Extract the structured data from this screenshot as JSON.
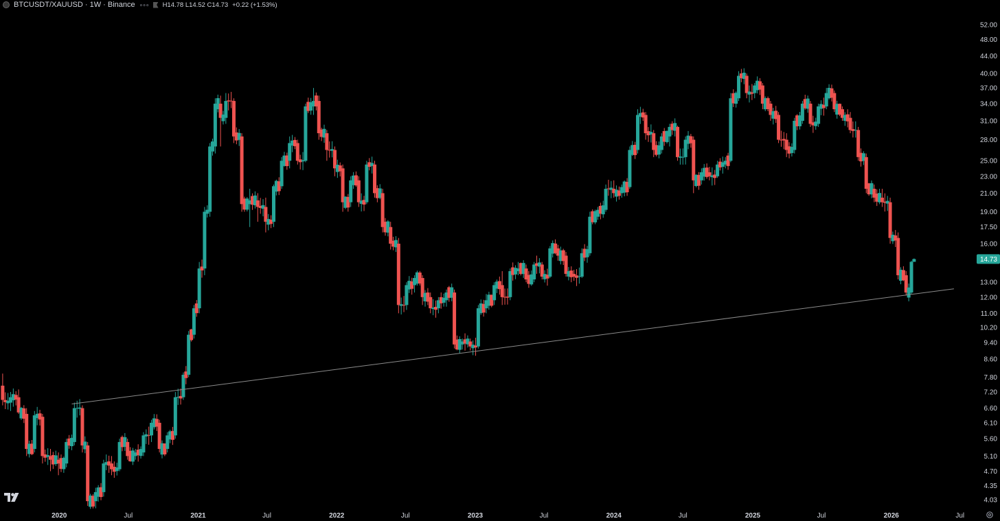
{
  "header": {
    "symbol": "BTCUSDT/XAUUSD · 1W · Binance",
    "ohlc": "H14.78  L14.52  C14.73",
    "change": "+0.22 (+1.53%)"
  },
  "colors": {
    "background": "#000000",
    "up": "#26a69a",
    "down": "#ef5350",
    "trendline": "#8c8c8c",
    "price_badge": "#26a69a"
  },
  "icons": {
    "logo": "tradingview-logo-icon",
    "settings": "gear-icon",
    "symbol": "symbol-dot-icon"
  },
  "chart_data": {
    "type": "candlestick",
    "scale": "log",
    "interval": "1W",
    "y_ticks": [
      52.0,
      48.0,
      44.0,
      40.0,
      37.0,
      34.0,
      31.0,
      28.0,
      25.0,
      23.0,
      21.0,
      19.0,
      17.5,
      16.0,
      13.0,
      12.0,
      11.0,
      10.2,
      9.4,
      8.6,
      7.8,
      7.2,
      6.6,
      6.1,
      5.6,
      5.1,
      4.7,
      4.35,
      4.03
    ],
    "y_tick_labels": [
      "52.00",
      "48.00",
      "44.00",
      "40.00",
      "37.00",
      "34.00",
      "31.00",
      "28.00",
      "25.00",
      "23.00",
      "21.00",
      "19.00",
      "17.50",
      "16.00",
      "13.00",
      "12.00",
      "11.00",
      "10.20",
      "9.40",
      "8.60",
      "7.80",
      "7.20",
      "6.60",
      "6.10",
      "5.60",
      "5.10",
      "4.70",
      "4.35",
      "4.03"
    ],
    "x_ticks": [
      {
        "label": "2020",
        "date": "2020-01-01",
        "bold": true
      },
      {
        "label": "Jul",
        "date": "2020-07-01",
        "bold": false
      },
      {
        "label": "2021",
        "date": "2021-01-01",
        "bold": true
      },
      {
        "label": "Jul",
        "date": "2021-07-01",
        "bold": false
      },
      {
        "label": "2022",
        "date": "2022-01-01",
        "bold": true
      },
      {
        "label": "Jul",
        "date": "2022-07-01",
        "bold": false
      },
      {
        "label": "2023",
        "date": "2023-01-01",
        "bold": true
      },
      {
        "label": "Jul",
        "date": "2023-07-01",
        "bold": false
      },
      {
        "label": "2024",
        "date": "2024-01-01",
        "bold": true
      },
      {
        "label": "Jul",
        "date": "2024-07-01",
        "bold": false
      },
      {
        "label": "2025",
        "date": "2025-01-01",
        "bold": true
      },
      {
        "label": "Jul",
        "date": "2025-07-01",
        "bold": false
      },
      {
        "label": "2026",
        "date": "2026-01-01",
        "bold": true
      },
      {
        "label": "Jul",
        "date": "2026-07-01",
        "bold": false
      }
    ],
    "last_price": 14.73,
    "last_price_label": "14.73",
    "trendline": [
      {
        "date": "2020-02-03",
        "value": 6.75
      },
      {
        "date": "2026-06-15",
        "value": 12.55
      }
    ],
    "x_range": [
      "2019-07-29",
      "2026-08-03"
    ],
    "y_range": [
      3.8,
      56.0
    ],
    "series": [
      {
        "x": "2019-08-05",
        "o": 7.45,
        "h": 7.95,
        "l": 6.7,
        "c": 6.9
      },
      {
        "x": "2019-08-26",
        "o": 6.8,
        "h": 7.2,
        "l": 6.5,
        "c": 7.0
      },
      {
        "x": "2019-09-16",
        "o": 7.0,
        "h": 7.3,
        "l": 6.4,
        "c": 6.45
      },
      {
        "x": "2019-10-07",
        "o": 6.4,
        "h": 6.6,
        "l": 5.1,
        "c": 5.3
      },
      {
        "x": "2019-10-28",
        "o": 5.3,
        "h": 6.5,
        "l": 5.2,
        "c": 6.35
      },
      {
        "x": "2019-11-18",
        "o": 6.3,
        "h": 6.4,
        "l": 4.9,
        "c": 5.1
      },
      {
        "x": "2019-12-09",
        "o": 5.1,
        "h": 5.3,
        "l": 4.7,
        "c": 5.0
      },
      {
        "x": "2019-12-30",
        "o": 5.0,
        "h": 5.2,
        "l": 4.6,
        "c": 4.9
      },
      {
        "x": "2020-01-20",
        "o": 4.9,
        "h": 5.6,
        "l": 4.8,
        "c": 5.5
      },
      {
        "x": "2020-02-10",
        "o": 5.5,
        "h": 6.8,
        "l": 5.4,
        "c": 6.6
      },
      {
        "x": "2020-03-02",
        "o": 6.6,
        "h": 6.7,
        "l": 5.2,
        "c": 5.4
      },
      {
        "x": "2020-03-16",
        "o": 5.4,
        "h": 5.5,
        "l": 3.9,
        "c": 4.0
      },
      {
        "x": "2020-04-06",
        "o": 4.0,
        "h": 4.3,
        "l": 3.85,
        "c": 4.2
      },
      {
        "x": "2020-04-27",
        "o": 4.2,
        "h": 5.0,
        "l": 4.1,
        "c": 4.9
      },
      {
        "x": "2020-05-18",
        "o": 4.9,
        "h": 5.1,
        "l": 4.6,
        "c": 4.75
      },
      {
        "x": "2020-06-08",
        "o": 4.75,
        "h": 5.6,
        "l": 4.7,
        "c": 5.5
      },
      {
        "x": "2020-06-29",
        "o": 5.5,
        "h": 5.6,
        "l": 5.0,
        "c": 5.1
      },
      {
        "x": "2020-07-20",
        "o": 5.1,
        "h": 5.3,
        "l": 5.0,
        "c": 5.2
      },
      {
        "x": "2020-08-10",
        "o": 5.2,
        "h": 5.8,
        "l": 5.1,
        "c": 5.7
      },
      {
        "x": "2020-08-31",
        "o": 5.7,
        "h": 6.2,
        "l": 5.5,
        "c": 6.1
      },
      {
        "x": "2020-09-21",
        "o": 6.1,
        "h": 6.2,
        "l": 5.2,
        "c": 5.3
      },
      {
        "x": "2020-10-12",
        "o": 5.3,
        "h": 5.8,
        "l": 5.2,
        "c": 5.7
      },
      {
        "x": "2020-11-02",
        "o": 5.7,
        "h": 7.2,
        "l": 5.6,
        "c": 7.0
      },
      {
        "x": "2020-11-23",
        "o": 7.0,
        "h": 8.0,
        "l": 6.9,
        "c": 7.9
      },
      {
        "x": "2020-12-07",
        "o": 7.9,
        "h": 10.0,
        "l": 7.8,
        "c": 9.8
      },
      {
        "x": "2020-12-21",
        "o": 9.8,
        "h": 11.5,
        "l": 9.6,
        "c": 11.3
      },
      {
        "x": "2021-01-04",
        "o": 11.3,
        "h": 14.5,
        "l": 11.0,
        "c": 14.0
      },
      {
        "x": "2021-01-18",
        "o": 14.0,
        "h": 19.5,
        "l": 13.5,
        "c": 19.0
      },
      {
        "x": "2021-02-01",
        "o": 19.0,
        "h": 27.5,
        "l": 18.5,
        "c": 27.0
      },
      {
        "x": "2021-02-15",
        "o": 27.0,
        "h": 35.0,
        "l": 26.0,
        "c": 34.0
      },
      {
        "x": "2021-03-01",
        "o": 34.0,
        "h": 35.5,
        "l": 27.0,
        "c": 31.5
      },
      {
        "x": "2021-03-15",
        "o": 31.5,
        "h": 36.0,
        "l": 30.5,
        "c": 34.5
      },
      {
        "x": "2021-04-05",
        "o": 34.5,
        "h": 35.0,
        "l": 27.5,
        "c": 28.5
      },
      {
        "x": "2021-04-26",
        "o": 28.5,
        "h": 29.0,
        "l": 19.0,
        "c": 19.8
      },
      {
        "x": "2021-05-17",
        "o": 19.8,
        "h": 21.5,
        "l": 17.5,
        "c": 20.2
      },
      {
        "x": "2021-06-07",
        "o": 20.2,
        "h": 21.0,
        "l": 18.0,
        "c": 19.5
      },
      {
        "x": "2021-06-28",
        "o": 19.5,
        "h": 20.5,
        "l": 17.0,
        "c": 18.0
      },
      {
        "x": "2021-07-19",
        "o": 18.0,
        "h": 22.0,
        "l": 17.5,
        "c": 21.8
      },
      {
        "x": "2021-08-09",
        "o": 21.8,
        "h": 25.5,
        "l": 21.5,
        "c": 25.0
      },
      {
        "x": "2021-08-30",
        "o": 25.0,
        "h": 28.5,
        "l": 24.0,
        "c": 27.5
      },
      {
        "x": "2021-09-20",
        "o": 27.5,
        "h": 28.0,
        "l": 24.5,
        "c": 25.0
      },
      {
        "x": "2021-10-11",
        "o": 25.0,
        "h": 34.0,
        "l": 24.8,
        "c": 33.5
      },
      {
        "x": "2021-11-01",
        "o": 33.5,
        "h": 37.0,
        "l": 32.0,
        "c": 34.5
      },
      {
        "x": "2021-11-15",
        "o": 34.5,
        "h": 35.5,
        "l": 28.0,
        "c": 29.0
      },
      {
        "x": "2021-12-06",
        "o": 29.0,
        "h": 29.5,
        "l": 25.0,
        "c": 26.5
      },
      {
        "x": "2021-12-27",
        "o": 26.5,
        "h": 27.0,
        "l": 23.0,
        "c": 24.0
      },
      {
        "x": "2022-01-17",
        "o": 24.0,
        "h": 24.5,
        "l": 19.0,
        "c": 20.0
      },
      {
        "x": "2022-02-07",
        "o": 20.0,
        "h": 23.0,
        "l": 19.5,
        "c": 22.5
      },
      {
        "x": "2022-02-28",
        "o": 22.5,
        "h": 23.0,
        "l": 19.5,
        "c": 20.0
      },
      {
        "x": "2022-03-21",
        "o": 20.0,
        "h": 25.0,
        "l": 19.8,
        "c": 24.5
      },
      {
        "x": "2022-04-11",
        "o": 24.5,
        "h": 25.0,
        "l": 20.5,
        "c": 21.0
      },
      {
        "x": "2022-05-02",
        "o": 21.0,
        "h": 21.5,
        "l": 17.0,
        "c": 17.5
      },
      {
        "x": "2022-05-23",
        "o": 17.5,
        "h": 18.0,
        "l": 15.5,
        "c": 16.0
      },
      {
        "x": "2022-06-13",
        "o": 16.0,
        "h": 16.5,
        "l": 11.0,
        "c": 11.5
      },
      {
        "x": "2022-07-04",
        "o": 11.5,
        "h": 13.0,
        "l": 11.2,
        "c": 12.8
      },
      {
        "x": "2022-07-25",
        "o": 12.8,
        "h": 13.5,
        "l": 12.3,
        "c": 13.3
      },
      {
        "x": "2022-08-15",
        "o": 13.3,
        "h": 13.5,
        "l": 11.5,
        "c": 12.0
      },
      {
        "x": "2022-09-05",
        "o": 12.0,
        "h": 12.3,
        "l": 11.0,
        "c": 11.3
      },
      {
        "x": "2022-09-26",
        "o": 11.3,
        "h": 12.0,
        "l": 11.0,
        "c": 11.8
      },
      {
        "x": "2022-10-17",
        "o": 11.8,
        "h": 12.5,
        "l": 11.4,
        "c": 12.3
      },
      {
        "x": "2022-11-07",
        "o": 12.3,
        "h": 12.5,
        "l": 9.1,
        "c": 9.3
      },
      {
        "x": "2022-11-28",
        "o": 9.3,
        "h": 9.6,
        "l": 9.05,
        "c": 9.45
      },
      {
        "x": "2022-12-19",
        "o": 9.45,
        "h": 9.6,
        "l": 9.0,
        "c": 9.2
      },
      {
        "x": "2023-01-09",
        "o": 9.2,
        "h": 11.5,
        "l": 9.1,
        "c": 11.3
      },
      {
        "x": "2023-01-30",
        "o": 11.3,
        "h": 12.2,
        "l": 11.0,
        "c": 11.8
      },
      {
        "x": "2023-02-20",
        "o": 11.8,
        "h": 13.0,
        "l": 11.5,
        "c": 12.8
      },
      {
        "x": "2023-03-13",
        "o": 12.8,
        "h": 13.8,
        "l": 11.5,
        "c": 12.0
      },
      {
        "x": "2023-04-03",
        "o": 12.0,
        "h": 14.0,
        "l": 11.8,
        "c": 13.8
      },
      {
        "x": "2023-04-24",
        "o": 13.8,
        "h": 14.5,
        "l": 13.5,
        "c": 14.0
      },
      {
        "x": "2023-05-15",
        "o": 14.0,
        "h": 14.3,
        "l": 13.0,
        "c": 13.2
      },
      {
        "x": "2023-06-05",
        "o": 13.2,
        "h": 14.5,
        "l": 13.0,
        "c": 14.3
      },
      {
        "x": "2023-06-26",
        "o": 14.3,
        "h": 14.5,
        "l": 13.2,
        "c": 13.4
      },
      {
        "x": "2023-07-17",
        "o": 13.4,
        "h": 15.8,
        "l": 13.3,
        "c": 15.6
      },
      {
        "x": "2023-08-07",
        "o": 15.6,
        "h": 15.9,
        "l": 14.6,
        "c": 15.0
      },
      {
        "x": "2023-08-28",
        "o": 15.0,
        "h": 15.3,
        "l": 13.4,
        "c": 13.6
      },
      {
        "x": "2023-09-18",
        "o": 13.6,
        "h": 13.9,
        "l": 13.1,
        "c": 13.4
      },
      {
        "x": "2023-10-09",
        "o": 13.4,
        "h": 15.6,
        "l": 13.3,
        "c": 15.2
      },
      {
        "x": "2023-10-30",
        "o": 15.2,
        "h": 19.0,
        "l": 15.0,
        "c": 18.5
      },
      {
        "x": "2023-11-20",
        "o": 18.5,
        "h": 19.5,
        "l": 18.2,
        "c": 19.2
      },
      {
        "x": "2023-12-11",
        "o": 19.2,
        "h": 22.0,
        "l": 19.0,
        "c": 21.5
      },
      {
        "x": "2024-01-01",
        "o": 21.5,
        "h": 22.5,
        "l": 20.5,
        "c": 21.0
      },
      {
        "x": "2024-01-22",
        "o": 21.0,
        "h": 22.0,
        "l": 20.5,
        "c": 21.7
      },
      {
        "x": "2024-02-12",
        "o": 21.7,
        "h": 27.0,
        "l": 21.5,
        "c": 26.5
      },
      {
        "x": "2024-03-04",
        "o": 26.5,
        "h": 33.0,
        "l": 26.0,
        "c": 32.0
      },
      {
        "x": "2024-03-25",
        "o": 32.0,
        "h": 32.5,
        "l": 28.0,
        "c": 29.0
      },
      {
        "x": "2024-04-15",
        "o": 29.0,
        "h": 29.5,
        "l": 25.5,
        "c": 26.5
      },
      {
        "x": "2024-05-06",
        "o": 26.5,
        "h": 29.0,
        "l": 26.0,
        "c": 28.5
      },
      {
        "x": "2024-05-27",
        "o": 28.5,
        "h": 30.5,
        "l": 27.0,
        "c": 30.0
      },
      {
        "x": "2024-06-17",
        "o": 30.0,
        "h": 30.2,
        "l": 25.0,
        "c": 25.5
      },
      {
        "x": "2024-07-08",
        "o": 25.5,
        "h": 28.5,
        "l": 24.5,
        "c": 28.0
      },
      {
        "x": "2024-07-29",
        "o": 28.0,
        "h": 28.5,
        "l": 21.0,
        "c": 22.5
      },
      {
        "x": "2024-08-19",
        "o": 22.5,
        "h": 24.0,
        "l": 22.0,
        "c": 23.5
      },
      {
        "x": "2024-09-09",
        "o": 23.5,
        "h": 24.2,
        "l": 22.5,
        "c": 23.0
      },
      {
        "x": "2024-09-30",
        "o": 23.0,
        "h": 25.0,
        "l": 22.8,
        "c": 24.5
      },
      {
        "x": "2024-10-21",
        "o": 24.5,
        "h": 25.5,
        "l": 24.0,
        "c": 25.0
      },
      {
        "x": "2024-11-04",
        "o": 25.0,
        "h": 36.0,
        "l": 24.8,
        "c": 35.0
      },
      {
        "x": "2024-11-25",
        "o": 35.0,
        "h": 40.5,
        "l": 34.5,
        "c": 39.5
      },
      {
        "x": "2024-12-16",
        "o": 39.5,
        "h": 40.0,
        "l": 35.0,
        "c": 36.0
      },
      {
        "x": "2025-01-06",
        "o": 36.0,
        "h": 38.0,
        "l": 35.0,
        "c": 37.5
      },
      {
        "x": "2025-01-27",
        "o": 37.5,
        "h": 38.0,
        "l": 33.0,
        "c": 34.0
      },
      {
        "x": "2025-02-17",
        "o": 34.0,
        "h": 34.5,
        "l": 31.0,
        "c": 32.0
      },
      {
        "x": "2025-03-10",
        "o": 32.0,
        "h": 32.5,
        "l": 27.5,
        "c": 28.0
      },
      {
        "x": "2025-03-31",
        "o": 28.0,
        "h": 29.0,
        "l": 25.5,
        "c": 26.5
      },
      {
        "x": "2025-04-21",
        "o": 26.5,
        "h": 31.5,
        "l": 26.0,
        "c": 31.0
      },
      {
        "x": "2025-05-12",
        "o": 31.0,
        "h": 34.5,
        "l": 30.5,
        "c": 34.0
      },
      {
        "x": "2025-06-02",
        "o": 34.0,
        "h": 34.5,
        "l": 30.0,
        "c": 30.5
      },
      {
        "x": "2025-06-23",
        "o": 30.5,
        "h": 34.0,
        "l": 30.0,
        "c": 33.5
      },
      {
        "x": "2025-07-14",
        "o": 33.5,
        "h": 37.0,
        "l": 33.0,
        "c": 36.0
      },
      {
        "x": "2025-08-04",
        "o": 36.0,
        "h": 36.5,
        "l": 32.5,
        "c": 33.0
      },
      {
        "x": "2025-08-25",
        "o": 33.0,
        "h": 33.5,
        "l": 31.0,
        "c": 31.5
      },
      {
        "x": "2025-09-15",
        "o": 31.5,
        "h": 32.5,
        "l": 29.0,
        "c": 29.5
      },
      {
        "x": "2025-10-06",
        "o": 29.5,
        "h": 30.0,
        "l": 25.0,
        "c": 25.5
      },
      {
        "x": "2025-10-27",
        "o": 25.5,
        "h": 26.0,
        "l": 21.0,
        "c": 21.5
      },
      {
        "x": "2025-11-17",
        "o": 21.5,
        "h": 22.0,
        "l": 20.0,
        "c": 20.5
      },
      {
        "x": "2025-12-08",
        "o": 20.5,
        "h": 21.5,
        "l": 19.5,
        "c": 20.0
      },
      {
        "x": "2025-12-29",
        "o": 20.0,
        "h": 20.5,
        "l": 16.0,
        "c": 16.5
      },
      {
        "x": "2026-01-19",
        "o": 16.5,
        "h": 17.0,
        "l": 13.2,
        "c": 13.5
      },
      {
        "x": "2026-02-09",
        "o": 13.5,
        "h": 13.8,
        "l": 12.1,
        "c": 12.3
      },
      {
        "x": "2026-02-23",
        "o": 12.3,
        "h": 14.6,
        "l": 12.2,
        "c": 14.51
      },
      {
        "x": "2026-03-02",
        "o": 14.51,
        "h": 14.78,
        "l": 14.52,
        "c": 14.73
      }
    ]
  }
}
